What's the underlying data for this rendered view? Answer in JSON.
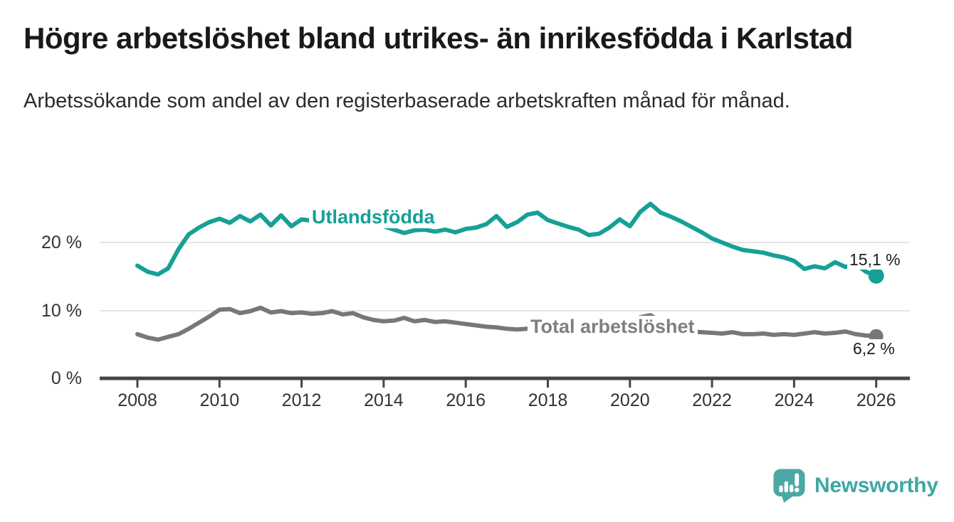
{
  "header": {
    "title": "Högre arbetslöshet bland utrikes- än inrikesfödda i Karlstad",
    "subtitle": "Arbetssökande som andel av den registerbaserade arbetskraften månad för månad."
  },
  "chart_data": {
    "type": "line",
    "title": "Högre arbetslöshet bland utrikes- än inrikesfödda i Karlstad",
    "subtitle": "Arbetssökande som andel av den registerbaserade arbetskraften månad för månad.",
    "x_unit": "year (quarterly samples)",
    "x_start": 2008,
    "x_step": 0.25,
    "xlim": [
      2007.1,
      2026.8
    ],
    "ylim": [
      0,
      27.5
    ],
    "grid": "horizontal",
    "legend_position": "inline-labels",
    "xticks": [
      2008,
      2010,
      2012,
      2014,
      2016,
      2018,
      2020,
      2022,
      2024,
      2026
    ],
    "yticks": [
      {
        "value": 0,
        "label": "0 %"
      },
      {
        "value": 10,
        "label": "10 %"
      },
      {
        "value": 20,
        "label": "20 %"
      }
    ],
    "series": [
      {
        "name": "Utlandsfödda",
        "label": "Utlandsfödda",
        "color": "#16A096",
        "end_value": 15.1,
        "end_label": "15,1 %",
        "values": [
          16.6,
          15.7,
          15.3,
          16.2,
          19.0,
          21.2,
          22.2,
          23.0,
          23.5,
          22.9,
          23.9,
          23.1,
          24.1,
          22.5,
          24.0,
          22.4,
          23.4,
          23.2,
          23.3,
          23.2,
          23.3,
          23.4,
          23.2,
          23.0,
          22.4,
          21.9,
          21.4,
          21.8,
          21.9,
          21.6,
          21.9,
          21.5,
          22.0,
          22.2,
          22.7,
          23.9,
          22.3,
          23.0,
          24.1,
          24.4,
          23.3,
          22.8,
          22.3,
          21.9,
          21.1,
          21.3,
          22.2,
          23.4,
          22.4,
          24.5,
          25.7,
          24.4,
          23.8,
          23.1,
          22.3,
          21.5,
          20.6,
          20.0,
          19.4,
          18.9,
          18.7,
          18.5,
          18.1,
          17.8,
          17.3,
          16.1,
          16.5,
          16.2,
          17.1,
          16.4,
          16.8,
          15.7,
          15.1
        ]
      },
      {
        "name": "Total arbetslöshet",
        "label": "Total arbetslöshet",
        "color": "#77777b",
        "end_value": 6.2,
        "end_label": "6,2 %",
        "values": [
          6.5,
          6.0,
          5.7,
          6.1,
          6.5,
          7.3,
          8.2,
          9.1,
          10.1,
          10.2,
          9.6,
          9.9,
          10.4,
          9.7,
          9.9,
          9.6,
          9.7,
          9.5,
          9.6,
          9.9,
          9.4,
          9.6,
          9.0,
          8.6,
          8.4,
          8.5,
          8.9,
          8.4,
          8.6,
          8.3,
          8.4,
          8.2,
          8.0,
          7.8,
          7.6,
          7.5,
          7.3,
          7.2,
          7.3,
          7.5,
          7.5,
          7.3,
          7.4,
          7.2,
          7.1,
          7.0,
          7.2,
          7.5,
          8.1,
          9.0,
          9.3,
          8.4,
          7.6,
          7.2,
          6.9,
          6.8,
          6.7,
          6.6,
          6.8,
          6.5,
          6.5,
          6.6,
          6.4,
          6.5,
          6.4,
          6.6,
          6.8,
          6.6,
          6.7,
          6.9,
          6.5,
          6.3,
          6.2
        ]
      }
    ]
  },
  "footer": {
    "brand": "Newsworthy",
    "brand_color": "#3FA7A3",
    "logo_icon": "newsworthy-speech-bubble-chart-icon"
  }
}
